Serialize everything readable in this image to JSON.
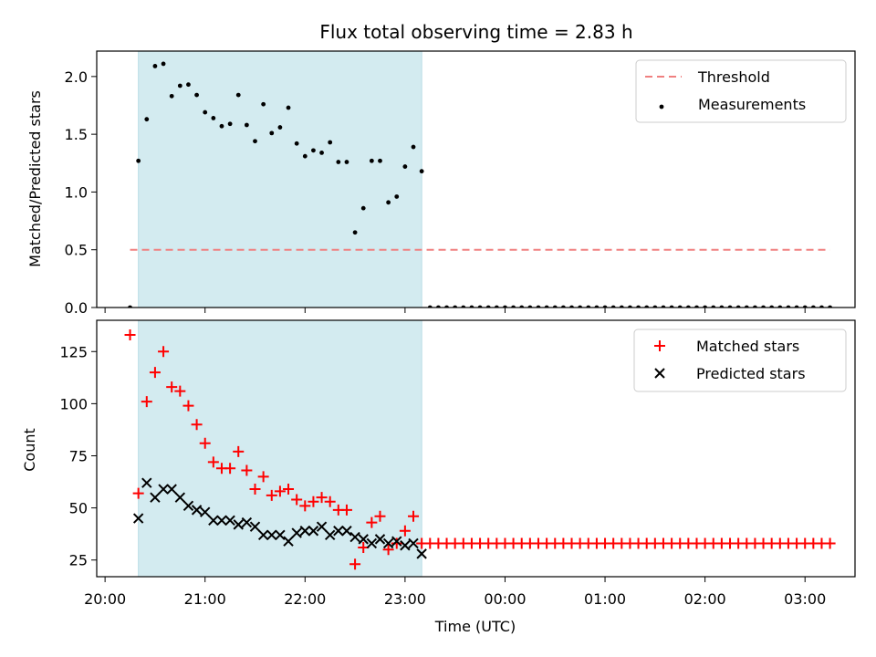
{
  "title": "Flux total observing time = 2.83 h",
  "colors": {
    "shade": "#d3ebf0",
    "threshold": "#f08080",
    "measure": "#000000",
    "matched": "#ff0000",
    "predicted": "#000000"
  },
  "chart_data": [
    {
      "type": "scatter",
      "ylabel": "Matched/Predicted stars",
      "ylim": [
        0,
        2.22
      ],
      "yticks": [
        "0.0",
        "0.5",
        "1.0",
        "1.5",
        "2.0"
      ],
      "ytick_values": [
        0,
        0.5,
        1.0,
        1.5,
        2.0
      ],
      "shaded_region": {
        "from": "20:20",
        "to": "23:10"
      },
      "threshold": {
        "value": 0.5,
        "from": "20:15",
        "to": "03:15",
        "name": "Threshold"
      },
      "legend": [
        "Threshold",
        "Measurements"
      ],
      "legend_position": "top-right",
      "series": [
        {
          "name": "Measurements",
          "points": [
            [
              "20:15",
              0.0
            ],
            [
              "20:20",
              1.27
            ],
            [
              "20:25",
              1.63
            ],
            [
              "20:30",
              2.09
            ],
            [
              "20:35",
              2.11
            ],
            [
              "20:40",
              1.83
            ],
            [
              "20:45",
              1.92
            ],
            [
              "20:50",
              1.93
            ],
            [
              "20:55",
              1.84
            ],
            [
              "21:00",
              1.69
            ],
            [
              "21:05",
              1.64
            ],
            [
              "21:10",
              1.57
            ],
            [
              "21:15",
              1.59
            ],
            [
              "21:20",
              1.84
            ],
            [
              "21:25",
              1.58
            ],
            [
              "21:30",
              1.44
            ],
            [
              "21:35",
              1.76
            ],
            [
              "21:40",
              1.51
            ],
            [
              "21:45",
              1.56
            ],
            [
              "21:50",
              1.73
            ],
            [
              "21:55",
              1.42
            ],
            [
              "22:00",
              1.31
            ],
            [
              "22:05",
              1.36
            ],
            [
              "22:10",
              1.34
            ],
            [
              "22:15",
              1.43
            ],
            [
              "22:20",
              1.26
            ],
            [
              "22:25",
              1.26
            ],
            [
              "22:30",
              0.65
            ],
            [
              "22:35",
              0.86
            ],
            [
              "22:40",
              1.27
            ],
            [
              "22:45",
              1.27
            ],
            [
              "22:50",
              0.91
            ],
            [
              "22:55",
              0.96
            ],
            [
              "23:00",
              1.22
            ],
            [
              "23:05",
              1.39
            ],
            [
              "23:10",
              1.18
            ],
            [
              "23:15",
              0
            ],
            [
              "23:20",
              0
            ],
            [
              "23:25",
              0
            ],
            [
              "23:30",
              0
            ],
            [
              "23:35",
              0
            ],
            [
              "23:40",
              0
            ],
            [
              "23:45",
              0
            ],
            [
              "23:50",
              0
            ],
            [
              "23:55",
              0
            ],
            [
              "00:00",
              0
            ],
            [
              "00:05",
              0
            ],
            [
              "00:10",
              0
            ],
            [
              "00:15",
              0
            ],
            [
              "00:20",
              0
            ],
            [
              "00:25",
              0
            ],
            [
              "00:30",
              0
            ],
            [
              "00:35",
              0
            ],
            [
              "00:40",
              0
            ],
            [
              "00:45",
              0
            ],
            [
              "00:50",
              0
            ],
            [
              "00:55",
              0
            ],
            [
              "01:00",
              0
            ],
            [
              "01:05",
              0
            ],
            [
              "01:10",
              0
            ],
            [
              "01:15",
              0
            ],
            [
              "01:20",
              0
            ],
            [
              "01:25",
              0
            ],
            [
              "01:30",
              0
            ],
            [
              "01:35",
              0
            ],
            [
              "01:40",
              0
            ],
            [
              "01:45",
              0
            ],
            [
              "01:50",
              0
            ],
            [
              "01:55",
              0
            ],
            [
              "02:00",
              0
            ],
            [
              "02:05",
              0
            ],
            [
              "02:10",
              0
            ],
            [
              "02:15",
              0
            ],
            [
              "02:20",
              0
            ],
            [
              "02:25",
              0
            ],
            [
              "02:30",
              0
            ],
            [
              "02:35",
              0
            ],
            [
              "02:40",
              0
            ],
            [
              "02:45",
              0
            ],
            [
              "02:50",
              0
            ],
            [
              "02:55",
              0
            ],
            [
              "03:00",
              0
            ],
            [
              "03:05",
              0
            ],
            [
              "03:10",
              0
            ],
            [
              "03:15",
              0
            ]
          ]
        }
      ]
    },
    {
      "type": "scatter",
      "xlabel": "Time (UTC)",
      "ylabel": "Count",
      "ylim": [
        17,
        140
      ],
      "yticks": [
        "25",
        "50",
        "75",
        "100",
        "125"
      ],
      "ytick_values": [
        25,
        50,
        75,
        100,
        125
      ],
      "xticks": [
        "20:00",
        "21:00",
        "22:00",
        "23:00",
        "00:00",
        "01:00",
        "02:00",
        "03:00"
      ],
      "xlim": [
        "19:55",
        "03:30"
      ],
      "shaded_region": {
        "from": "20:20",
        "to": "23:10"
      },
      "legend": [
        "Matched stars",
        "Predicted stars"
      ],
      "legend_position": "top-right",
      "series": [
        {
          "name": "Matched stars",
          "marker": "+",
          "points": [
            [
              "20:15",
              133
            ],
            [
              "20:20",
              57
            ],
            [
              "20:25",
              101
            ],
            [
              "20:30",
              115
            ],
            [
              "20:35",
              125
            ],
            [
              "20:40",
              108
            ],
            [
              "20:45",
              106
            ],
            [
              "20:50",
              99
            ],
            [
              "20:55",
              90
            ],
            [
              "21:00",
              81
            ],
            [
              "21:05",
              72
            ],
            [
              "21:10",
              69
            ],
            [
              "21:15",
              69
            ],
            [
              "21:20",
              77
            ],
            [
              "21:25",
              68
            ],
            [
              "21:30",
              59
            ],
            [
              "21:35",
              65
            ],
            [
              "21:40",
              56
            ],
            [
              "21:45",
              58
            ],
            [
              "21:50",
              59
            ],
            [
              "21:55",
              54
            ],
            [
              "22:00",
              51
            ],
            [
              "22:05",
              53
            ],
            [
              "22:10",
              55
            ],
            [
              "22:15",
              53
            ],
            [
              "22:20",
              49
            ],
            [
              "22:25",
              49
            ],
            [
              "22:30",
              23
            ],
            [
              "22:35",
              31
            ],
            [
              "22:40",
              43
            ],
            [
              "22:45",
              46
            ],
            [
              "22:50",
              30
            ],
            [
              "22:55",
              33
            ],
            [
              "23:00",
              39
            ],
            [
              "23:05",
              46
            ],
            [
              "23:10",
              33
            ],
            [
              "23:15",
              33
            ],
            [
              "23:20",
              33
            ],
            [
              "23:25",
              33
            ],
            [
              "23:30",
              33
            ],
            [
              "23:35",
              33
            ],
            [
              "23:40",
              33
            ],
            [
              "23:45",
              33
            ],
            [
              "23:50",
              33
            ],
            [
              "23:55",
              33
            ],
            [
              "00:00",
              33
            ],
            [
              "00:05",
              33
            ],
            [
              "00:10",
              33
            ],
            [
              "00:15",
              33
            ],
            [
              "00:20",
              33
            ],
            [
              "00:25",
              33
            ],
            [
              "00:30",
              33
            ],
            [
              "00:35",
              33
            ],
            [
              "00:40",
              33
            ],
            [
              "00:45",
              33
            ],
            [
              "00:50",
              33
            ],
            [
              "00:55",
              33
            ],
            [
              "01:00",
              33
            ],
            [
              "01:05",
              33
            ],
            [
              "01:10",
              33
            ],
            [
              "01:15",
              33
            ],
            [
              "01:20",
              33
            ],
            [
              "01:25",
              33
            ],
            [
              "01:30",
              33
            ],
            [
              "01:35",
              33
            ],
            [
              "01:40",
              33
            ],
            [
              "01:45",
              33
            ],
            [
              "01:50",
              33
            ],
            [
              "01:55",
              33
            ],
            [
              "02:00",
              33
            ],
            [
              "02:05",
              33
            ],
            [
              "02:10",
              33
            ],
            [
              "02:15",
              33
            ],
            [
              "02:20",
              33
            ],
            [
              "02:25",
              33
            ],
            [
              "02:30",
              33
            ],
            [
              "02:35",
              33
            ],
            [
              "02:40",
              33
            ],
            [
              "02:45",
              33
            ],
            [
              "02:50",
              33
            ],
            [
              "02:55",
              33
            ],
            [
              "03:00",
              33
            ],
            [
              "03:05",
              33
            ],
            [
              "03:10",
              33
            ],
            [
              "03:15",
              33
            ]
          ]
        },
        {
          "name": "Predicted stars",
          "marker": "x",
          "points": [
            [
              "20:20",
              45
            ],
            [
              "20:25",
              62
            ],
            [
              "20:30",
              55
            ],
            [
              "20:35",
              59
            ],
            [
              "20:40",
              59
            ],
            [
              "20:45",
              55
            ],
            [
              "20:50",
              51
            ],
            [
              "20:55",
              49
            ],
            [
              "21:00",
              48
            ],
            [
              "21:05",
              44
            ],
            [
              "21:10",
              44
            ],
            [
              "21:15",
              44
            ],
            [
              "21:20",
              42
            ],
            [
              "21:25",
              43
            ],
            [
              "21:30",
              41
            ],
            [
              "21:35",
              37
            ],
            [
              "21:40",
              37
            ],
            [
              "21:45",
              37
            ],
            [
              "21:50",
              34
            ],
            [
              "21:55",
              38
            ],
            [
              "22:00",
              39
            ],
            [
              "22:05",
              39
            ],
            [
              "22:10",
              41
            ],
            [
              "22:15",
              37
            ],
            [
              "22:20",
              39
            ],
            [
              "22:25",
              39
            ],
            [
              "22:30",
              36
            ],
            [
              "22:35",
              35
            ],
            [
              "22:40",
              33
            ],
            [
              "22:45",
              35
            ],
            [
              "22:50",
              33
            ],
            [
              "22:55",
              34
            ],
            [
              "23:00",
              32
            ],
            [
              "23:05",
              33
            ],
            [
              "23:10",
              28
            ]
          ]
        }
      ]
    }
  ]
}
